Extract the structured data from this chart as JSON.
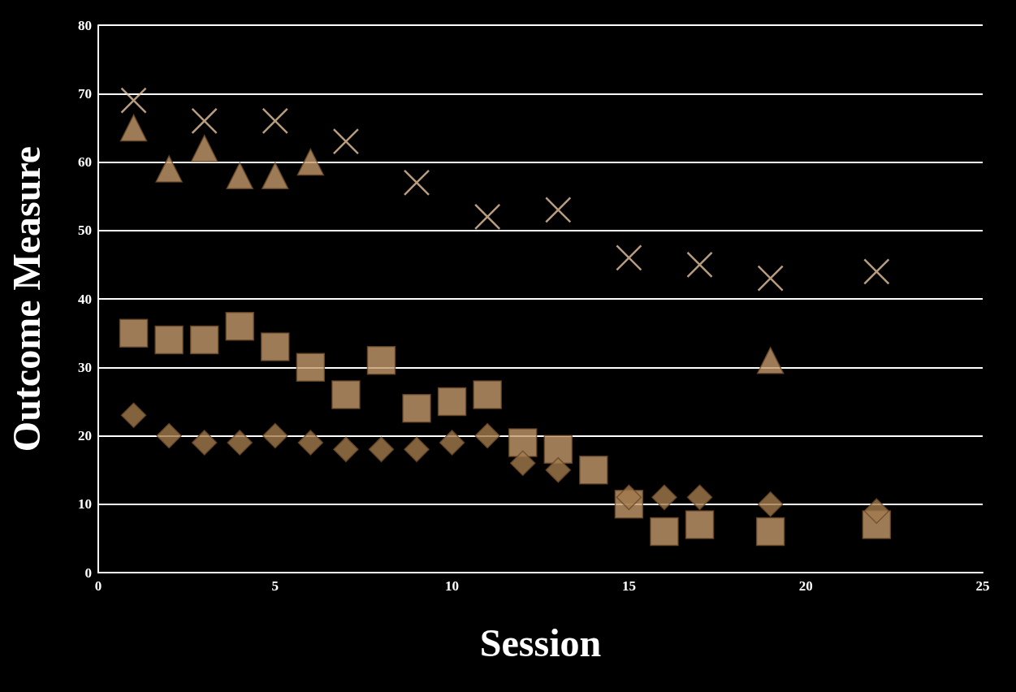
{
  "chart_data": {
    "type": "scatter",
    "xlabel": "Session",
    "ylabel": "Outcome Measure",
    "xlim": [
      0,
      25
    ],
    "xticks": [
      0,
      5,
      10,
      15,
      20,
      25
    ],
    "ylim": [
      0,
      80
    ],
    "yticks": [
      0,
      10,
      20,
      30,
      40,
      50,
      60,
      70,
      80
    ],
    "grid": "y",
    "series": [
      {
        "color": "#e6c3a0",
        "marker": "cross",
        "x": [
          1,
          3,
          5,
          7,
          9,
          11,
          13,
          15,
          17,
          19,
          22
        ],
        "values": [
          69,
          66,
          66,
          63,
          57,
          52,
          53,
          46,
          45,
          43,
          44
        ]
      },
      {
        "color": "#c49a6c",
        "marker": "triangle",
        "x": [
          1,
          2,
          3,
          4,
          5,
          6,
          19
        ],
        "values": [
          65,
          59,
          62,
          58,
          58,
          60,
          31
        ]
      },
      {
        "color": "#c49a6c",
        "marker": "square",
        "x": [
          1,
          2,
          3,
          4,
          5,
          6,
          7,
          8,
          9,
          10,
          11,
          12,
          13,
          14,
          15,
          16,
          17,
          19,
          22
        ],
        "values": [
          35,
          34,
          34,
          36,
          33,
          30,
          26,
          31,
          24,
          25,
          26,
          19,
          18,
          15,
          10,
          6,
          7,
          6,
          7
        ]
      },
      {
        "color": "#a47a4e",
        "marker": "diamond",
        "x": [
          1,
          2,
          3,
          4,
          5,
          6,
          7,
          8,
          9,
          10,
          11,
          12,
          13,
          15,
          16,
          17,
          19,
          22
        ],
        "values": [
          23,
          20,
          19,
          19,
          20,
          19,
          18,
          18,
          18,
          19,
          20,
          16,
          15,
          11,
          11,
          11,
          10,
          9
        ]
      }
    ]
  }
}
